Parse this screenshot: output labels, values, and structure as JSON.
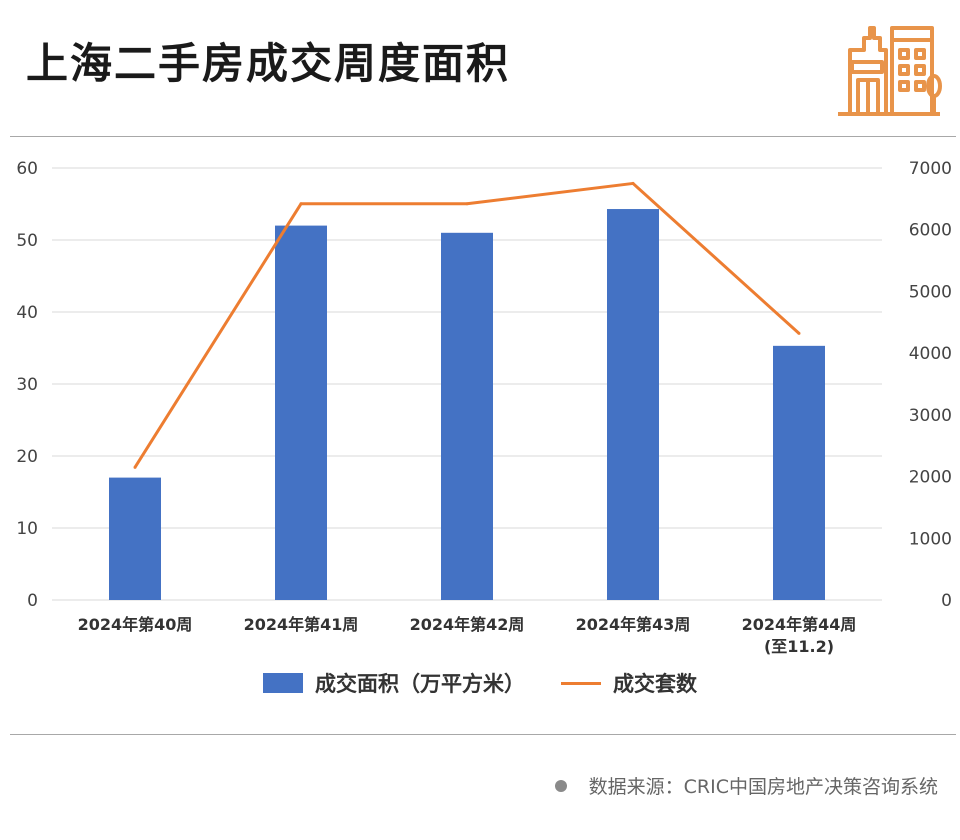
{
  "title": "上海二手房成交周度面积",
  "logo_icon": "city-buildings-icon",
  "chart_data": {
    "type": "bar+line",
    "categories": [
      [
        "2024年第40周"
      ],
      [
        "2024年第41周"
      ],
      [
        "2024年第42周"
      ],
      [
        "2024年第43周"
      ],
      [
        "2024年第44周",
        "(至11.2)"
      ]
    ],
    "series": [
      {
        "name": "成交面积（万平方米）",
        "type": "bar",
        "axis": "left",
        "color": "#4472c4",
        "values": [
          17,
          52,
          51,
          54.3,
          35.3
        ]
      },
      {
        "name": "成交套数",
        "type": "line",
        "axis": "right",
        "color": "#ed7d31",
        "values": [
          2150,
          6420,
          6420,
          6750,
          4320
        ]
      }
    ],
    "y_left": {
      "min": 0,
      "max": 60,
      "ticks": [
        0,
        10,
        20,
        30,
        40,
        50,
        60
      ]
    },
    "y_right": {
      "min": 0,
      "max": 7000,
      "ticks": [
        0,
        1000,
        2000,
        3000,
        4000,
        5000,
        6000,
        7000
      ]
    },
    "grid": true,
    "legend_position": "bottom"
  },
  "source": "数据来源：CRIC中国房地产决策咨询系统"
}
